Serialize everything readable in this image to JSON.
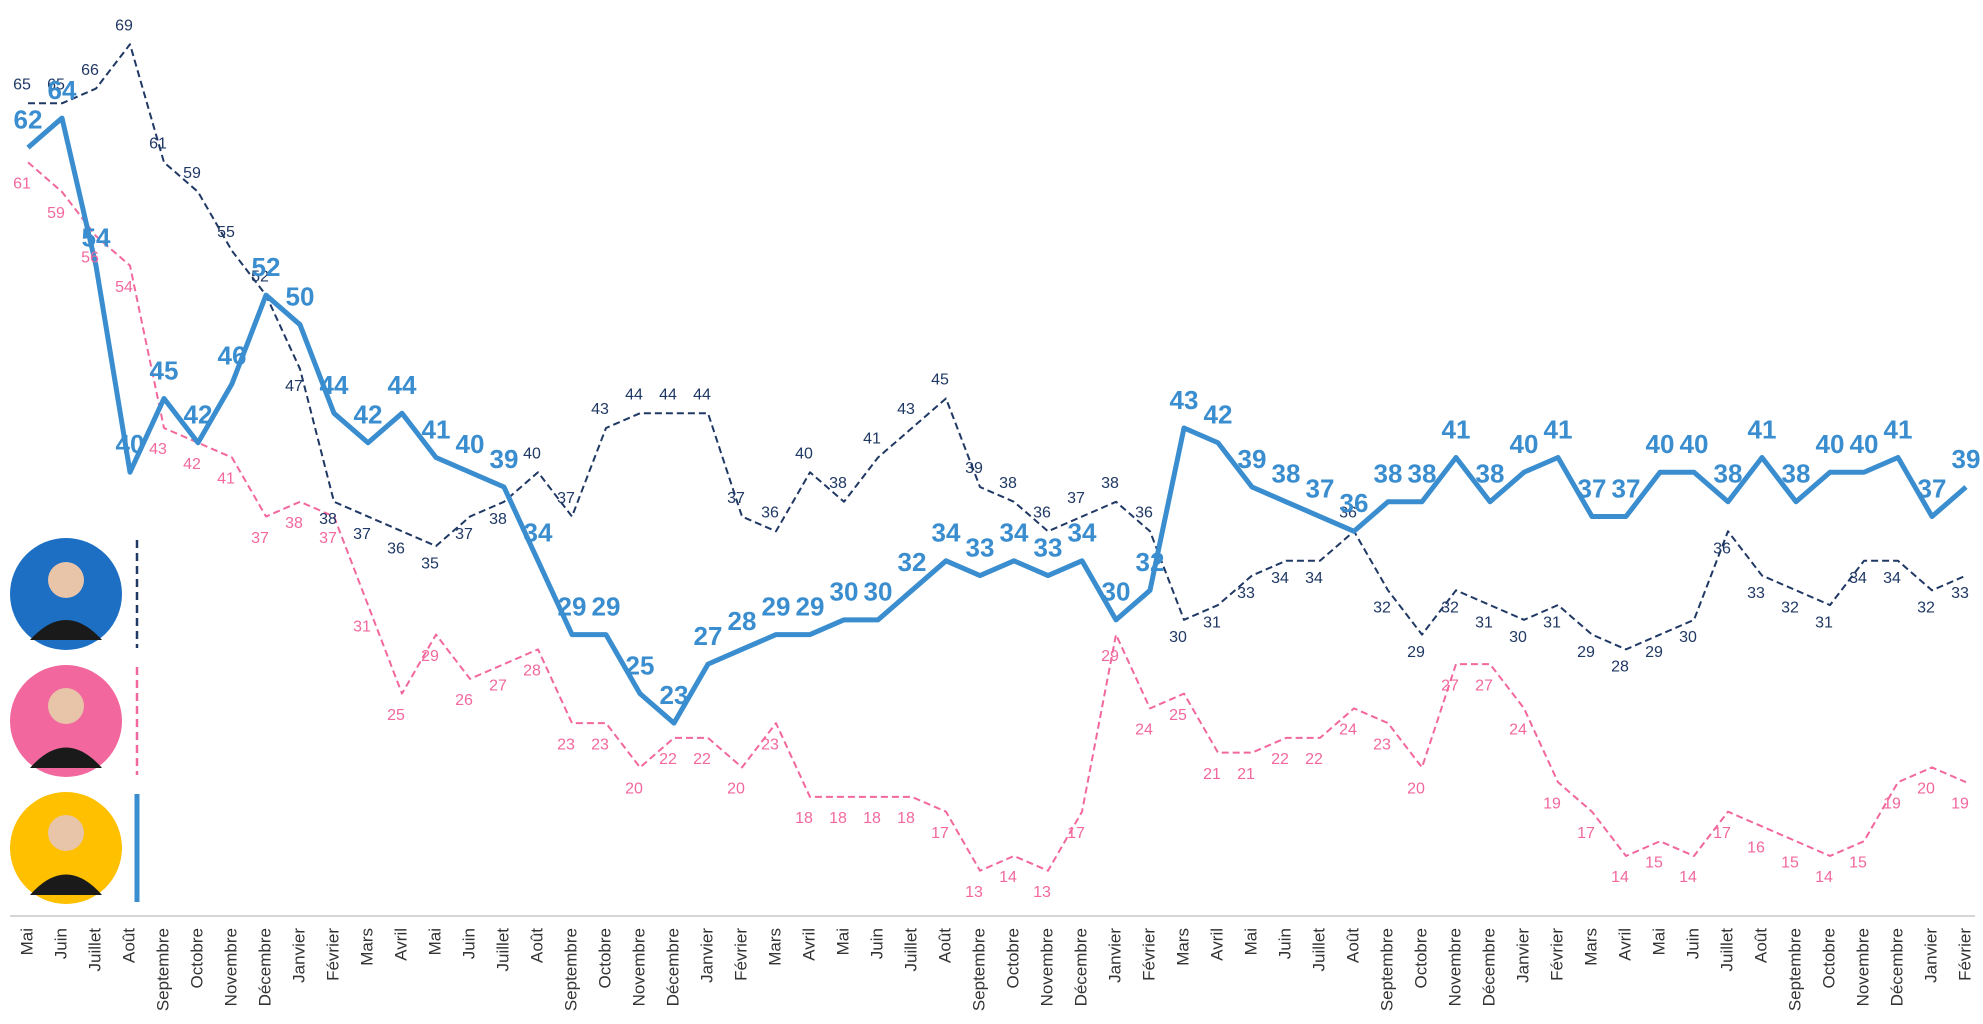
{
  "chart_data": {
    "type": "line",
    "categories": [
      "Mai",
      "Juin",
      "Juillet",
      "Août",
      "Septembre",
      "Octobre",
      "Novembre",
      "Décembre",
      "Janvier",
      "Février",
      "Mars",
      "Avril",
      "Mai",
      "Juin",
      "Juillet",
      "Août",
      "Septembre",
      "Octobre",
      "Novembre",
      "Décembre",
      "Janvier",
      "Février",
      "Mars",
      "Avril",
      "Mai",
      "Juin",
      "Juillet",
      "Août",
      "Septembre",
      "Octobre",
      "Novembre",
      "Décembre",
      "Janvier",
      "Février",
      "Mars",
      "Avril",
      "Mai",
      "Juin",
      "Juillet",
      "Août",
      "Septembre",
      "Octobre",
      "Novembre",
      "Décembre",
      "Janvier",
      "Février",
      "Mars",
      "Avril",
      "Mai",
      "Juin",
      "Juillet",
      "Août",
      "Septembre",
      "Octobre",
      "Novembre",
      "Décembre",
      "Janvier",
      "Février"
    ],
    "ylim": [
      10,
      72
    ],
    "series": [
      {
        "color": "#1f3864",
        "dashed": true,
        "values": [
          65,
          65,
          66,
          69,
          61,
          59,
          55,
          52,
          47,
          38,
          37,
          36,
          35,
          37,
          38,
          40,
          37,
          43,
          44,
          44,
          44,
          37,
          36,
          40,
          38,
          41,
          43,
          45,
          39,
          38,
          36,
          37,
          38,
          36,
          30,
          31,
          33,
          34,
          34,
          36,
          32,
          29,
          32,
          31,
          30,
          31,
          29,
          28,
          29,
          30,
          36,
          33,
          32,
          31,
          34,
          34,
          32,
          33
        ]
      },
      {
        "color": "#f2689e",
        "dashed": true,
        "values": [
          61,
          59,
          56,
          54,
          43,
          42,
          41,
          37,
          38,
          37,
          31,
          25,
          29,
          26,
          27,
          28,
          23,
          23,
          20,
          22,
          22,
          20,
          23,
          18,
          18,
          18,
          18,
          17,
          13,
          14,
          13,
          17,
          29,
          24,
          25,
          21,
          21,
          22,
          22,
          24,
          23,
          20,
          27,
          27,
          24,
          19,
          17,
          14,
          15,
          14,
          17,
          16,
          15,
          14,
          15,
          19,
          20,
          19
        ]
      },
      {
        "color": "#3a8dce",
        "dashed": false,
        "values": [
          62,
          64,
          54,
          40,
          45,
          42,
          46,
          52,
          50,
          44,
          42,
          44,
          41,
          40,
          39,
          34,
          29,
          29,
          25,
          23,
          27,
          28,
          29,
          29,
          30,
          30,
          32,
          34,
          33,
          34,
          33,
          34,
          30,
          32,
          43,
          42,
          39,
          38,
          37,
          36,
          38,
          38,
          41,
          38,
          40,
          41,
          37,
          37,
          40,
          40,
          38,
          41,
          38,
          40,
          40,
          41,
          37,
          39
        ]
      }
    ]
  }
}
